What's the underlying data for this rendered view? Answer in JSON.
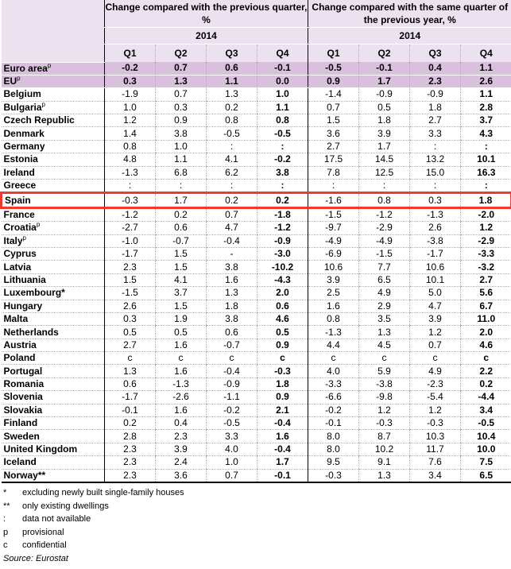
{
  "header": {
    "group1": "Change compared with the previous quarter, %",
    "group2": "Change compared with the same quarter of the previous year, %",
    "year1": "2014",
    "year2": "2014",
    "quarters": [
      "Q1",
      "Q2",
      "Q3",
      "Q4",
      "Q1",
      "Q2",
      "Q3",
      "Q4"
    ]
  },
  "highlight_color": "#f03a30",
  "rows": [
    {
      "name": "Euro area",
      "sup": "p",
      "agg": true,
      "v": [
        "-0.2",
        "0.7",
        "0.6",
        "-0.1",
        "-0.5",
        "-0.1",
        "0.4",
        "1.1"
      ]
    },
    {
      "name": "EU",
      "sup": "p",
      "agg": true,
      "v": [
        "0.3",
        "1.3",
        "1.1",
        "0.0",
        "0.9",
        "1.7",
        "2.3",
        "2.6"
      ]
    },
    {
      "name": "Belgium",
      "v": [
        "-1.9",
        "0.7",
        "1.3",
        "1.0",
        "-1.4",
        "-0.9",
        "-0.9",
        "1.1"
      ]
    },
    {
      "name": "Bulgaria",
      "sup": "p",
      "v": [
        "1.0",
        "0.3",
        "0.2",
        "1.1",
        "0.7",
        "0.5",
        "1.8",
        "2.8"
      ]
    },
    {
      "name": "Czech Republic",
      "v": [
        "1.2",
        "0.9",
        "0.8",
        "0.8",
        "1.5",
        "1.8",
        "2.7",
        "3.7"
      ]
    },
    {
      "name": "Denmark",
      "v": [
        "1.4",
        "3.8",
        "-0.5",
        "-0.5",
        "3.6",
        "3.9",
        "3.3",
        "4.3"
      ]
    },
    {
      "name": "Germany",
      "v": [
        "0.8",
        "1.0",
        ":",
        ":",
        "2.7",
        "1.7",
        ":",
        ":"
      ]
    },
    {
      "name": "Estonia",
      "v": [
        "4.8",
        "1.1",
        "4.1",
        "-0.2",
        "17.5",
        "14.5",
        "13.2",
        "10.1"
      ]
    },
    {
      "name": "Ireland",
      "v": [
        "-1.3",
        "6.8",
        "6.2",
        "3.8",
        "7.8",
        "12.5",
        "15.0",
        "16.3"
      ]
    },
    {
      "name": "Greece",
      "v": [
        ":",
        ":",
        ":",
        ":",
        ":",
        ":",
        ":",
        ":"
      ]
    },
    {
      "name": "Spain",
      "highlight": true,
      "v": [
        "-0.3",
        "1.7",
        "0.2",
        "0.2",
        "-1.6",
        "0.8",
        "0.3",
        "1.8"
      ]
    },
    {
      "name": "France",
      "v": [
        "-1.2",
        "0.2",
        "0.7",
        "-1.8",
        "-1.5",
        "-1.2",
        "-1.3",
        "-2.0"
      ]
    },
    {
      "name": "Croatia",
      "sup": "p",
      "v": [
        "-2.7",
        "0.6",
        "4.7",
        "-1.2",
        "-9.7",
        "-2.9",
        "2.6",
        "1.2"
      ]
    },
    {
      "name": "Italy",
      "sup": "p",
      "v": [
        "-1.0",
        "-0.7",
        "-0.4",
        "-0.9",
        "-4.9",
        "-4.9",
        "-3.8",
        "-2.9"
      ]
    },
    {
      "name": "Cyprus",
      "v": [
        "-1.7",
        "1.5",
        "-",
        "-3.0",
        "-6.9",
        "-1.5",
        "-1.7",
        "-3.3"
      ]
    },
    {
      "name": "Latvia",
      "v": [
        "2.3",
        "1.5",
        "3.8",
        "-10.2",
        "10.6",
        "7.7",
        "10.6",
        "-3.2"
      ]
    },
    {
      "name": "Lithuania",
      "v": [
        "1.5",
        "4.1",
        "1.6",
        "-4.3",
        "3.9",
        "6.5",
        "10.1",
        "2.7"
      ]
    },
    {
      "name": "Luxembourg*",
      "v": [
        "-1.5",
        "3.7",
        "1.3",
        "2.0",
        "2.5",
        "4.9",
        "5.0",
        "5.6"
      ]
    },
    {
      "name": "Hungary",
      "v": [
        "2.6",
        "1.5",
        "1.8",
        "0.6",
        "1.6",
        "2.9",
        "4.7",
        "6.7"
      ]
    },
    {
      "name": "Malta",
      "v": [
        "0.3",
        "1.9",
        "3.8",
        "4.6",
        "0.8",
        "3.5",
        "3.9",
        "11.0"
      ]
    },
    {
      "name": "Netherlands",
      "v": [
        "0.5",
        "0.5",
        "0.6",
        "0.5",
        "-1.3",
        "1.3",
        "1.2",
        "2.0"
      ]
    },
    {
      "name": "Austria",
      "v": [
        "2.7",
        "1.6",
        "-0.7",
        "0.9",
        "4.4",
        "4.5",
        "0.7",
        "4.6"
      ]
    },
    {
      "name": "Poland",
      "v": [
        "c",
        "c",
        "c",
        "c",
        "c",
        "c",
        "c",
        "c"
      ]
    },
    {
      "name": "Portugal",
      "v": [
        "1.3",
        "1.6",
        "-0.4",
        "-0.3",
        "4.0",
        "5.9",
        "4.9",
        "2.2"
      ]
    },
    {
      "name": "Romania",
      "v": [
        "0.6",
        "-1.3",
        "-0.9",
        "1.8",
        "-3.3",
        "-3.8",
        "-2.3",
        "0.2"
      ]
    },
    {
      "name": "Slovenia",
      "v": [
        "-1.7",
        "-2.6",
        "-1.1",
        "0.9",
        "-6.6",
        "-9.8",
        "-5.4",
        "-4.4"
      ]
    },
    {
      "name": "Slovakia",
      "v": [
        "-0.1",
        "1.6",
        "-0.2",
        "2.1",
        "-0.2",
        "1.2",
        "1.2",
        "3.4"
      ]
    },
    {
      "name": "Finland",
      "v": [
        "0.2",
        "0.4",
        "-0.5",
        "-0.4",
        "-0.1",
        "-0.3",
        "-0.3",
        "-0.5"
      ]
    },
    {
      "name": "Sweden",
      "v": [
        "2.8",
        "2.3",
        "3.3",
        "1.6",
        "8.0",
        "8.7",
        "10.3",
        "10.4"
      ]
    },
    {
      "name": "United Kingdom",
      "v": [
        "2.3",
        "3.9",
        "4.0",
        "-0.4",
        "8.0",
        "10.2",
        "11.7",
        "10.0"
      ]
    },
    {
      "name": "Iceland",
      "v": [
        "2.3",
        "2.4",
        "1.0",
        "1.7",
        "9.5",
        "9.1",
        "7.6",
        "7.5"
      ]
    },
    {
      "name": "Norway**",
      "v": [
        "2.3",
        "3.6",
        "0.7",
        "-0.1",
        "-0.3",
        "1.3",
        "3.4",
        "6.5"
      ]
    }
  ],
  "notes": [
    {
      "key": "*",
      "text": "excluding newly built single-family houses"
    },
    {
      "key": "**",
      "text": "only existing dwellings"
    },
    {
      "key": ":",
      "text": "data not available"
    },
    {
      "key": "p",
      "text": "provisional"
    },
    {
      "key": "c",
      "text": "confidential"
    }
  ],
  "source": "Source: Eurostat"
}
